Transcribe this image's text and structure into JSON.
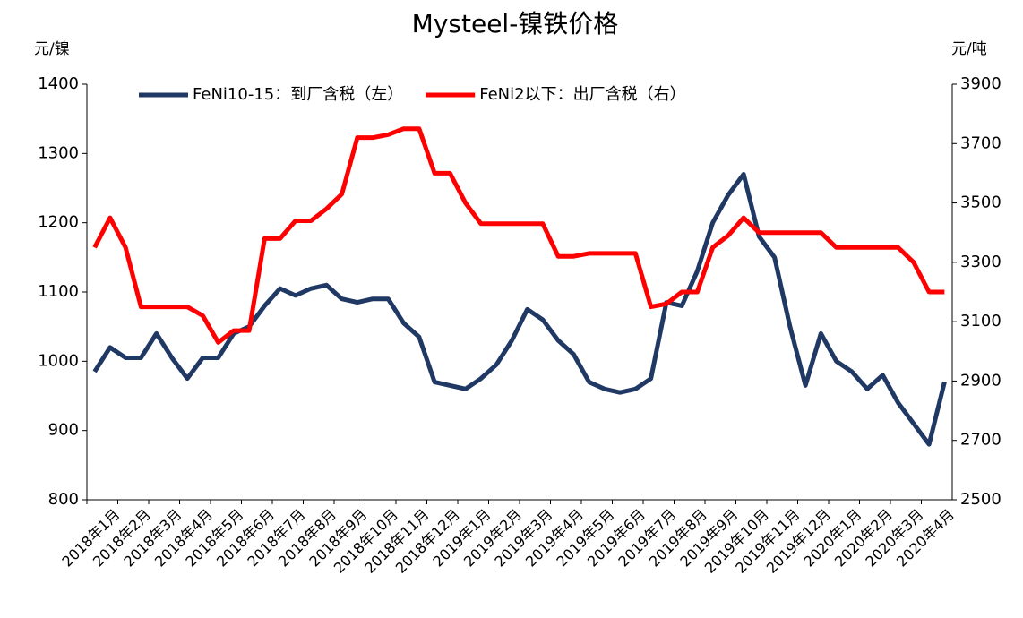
{
  "chart_data": {
    "type": "line",
    "title": "Mysteel-镍铁价格",
    "y_label": "元/镍",
    "y2_label": "元/吨",
    "categories": [
      "2018年1月",
      null,
      "2018年2月",
      null,
      "2018年3月",
      null,
      "2018年4月",
      null,
      "2018年5月",
      null,
      "2018年6月",
      null,
      "2018年7月",
      null,
      "2018年8月",
      null,
      "2018年9月",
      null,
      "2018年10月",
      null,
      "2018年11月",
      null,
      "2018年12月",
      null,
      "2019年1月",
      null,
      "2019年2月",
      null,
      "2019年3月",
      null,
      "2019年4月",
      null,
      "2019年5月",
      null,
      "2019年6月",
      null,
      "2019年7月",
      null,
      "2019年8月",
      null,
      "2019年9月",
      null,
      "2019年10月",
      null,
      "2019年11月",
      null,
      "2019年12月",
      null,
      "2020年1月",
      null,
      "2020年2月",
      null,
      "2020年3月",
      null,
      "2020年4月",
      null
    ],
    "series": [
      {
        "name": "FeNi10-15：到厂含税（左）",
        "color": "#203864",
        "axis": "y",
        "values": [
          985,
          1020,
          1005,
          1005,
          1040,
          1005,
          975,
          1005,
          1005,
          1040,
          1050,
          1080,
          1105,
          1095,
          1105,
          1110,
          1090,
          1085,
          1090,
          1090,
          1055,
          1035,
          970,
          965,
          960,
          975,
          995,
          1030,
          1075,
          1060,
          1030,
          1010,
          970,
          960,
          955,
          960,
          975,
          1085,
          1080,
          1130,
          1200,
          1240,
          1270,
          1180,
          1150,
          1050,
          965,
          1040,
          1000,
          985,
          960,
          980,
          940,
          910,
          880,
          970
        ]
      },
      {
        "name": "FeNi2以下：出厂含税（右）",
        "color": "#ff0000",
        "axis": "y2",
        "values": [
          3350,
          3450,
          3350,
          3150,
          3150,
          3150,
          3150,
          3120,
          3030,
          3070,
          3070,
          3380,
          3380,
          3440,
          3440,
          3480,
          3530,
          3720,
          3720,
          3730,
          3750,
          3750,
          3600,
          3600,
          3500,
          3430,
          3430,
          3430,
          3430,
          3430,
          3320,
          3320,
          3330,
          3330,
          3330,
          3330,
          3150,
          3160,
          3200,
          3200,
          3350,
          3390,
          3450,
          3400,
          3400,
          3400,
          3400,
          3400,
          3350,
          3350,
          3350,
          3350,
          3350,
          3300,
          3200,
          3200
        ]
      }
    ],
    "ylim": [
      800,
      1400
    ],
    "yticks": [
      800,
      900,
      1000,
      1100,
      1200,
      1300,
      1400
    ],
    "y2lim": [
      2500,
      3900
    ],
    "y2ticks": [
      2500,
      2700,
      2900,
      3100,
      3300,
      3500,
      3700,
      3900
    ],
    "legend": "top",
    "grid": false
  }
}
